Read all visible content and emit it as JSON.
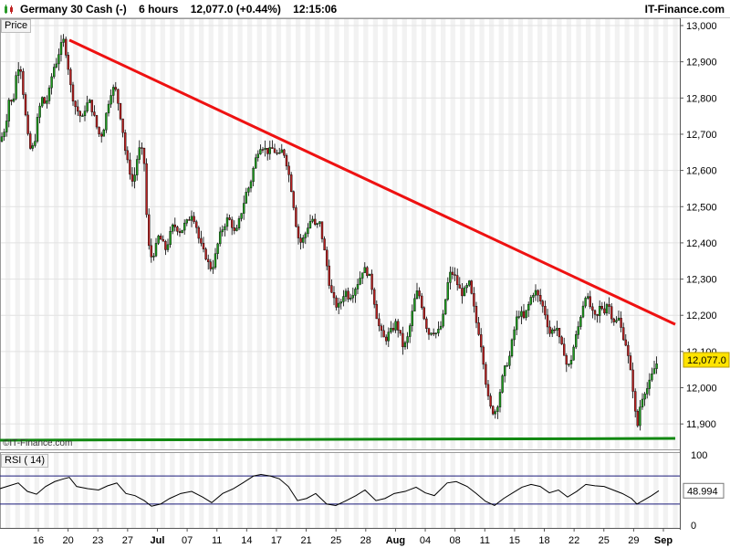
{
  "header": {
    "instrument": "Germany 30 Cash (-)",
    "timeframe": "6 hours",
    "last": "12,077.0 (+0.44%)",
    "time": "12:15:06",
    "brand": "IT-Finance.com"
  },
  "panels": {
    "price_label": "Price",
    "rsi_label": "RSI ( 14)",
    "watermark": "©IT-Finance.com"
  },
  "colors": {
    "up": "#1f9a1f",
    "down": "#b52020",
    "trend": "#ee1111",
    "support": "#118811",
    "band": "#f2f2f2"
  },
  "chart_data": [
    {
      "type": "candlestick",
      "title": "Germany 30 Cash (-) 6 hours",
      "ylim": [
        11850,
        13000
      ],
      "y_ticks": [
        11900,
        12000,
        12100,
        12200,
        12300,
        12400,
        12500,
        12600,
        12700,
        12800,
        12900,
        13000
      ],
      "y_tick_labels": [
        "11,900",
        "12,000",
        "12,100",
        "12,200",
        "12,300",
        "12,400",
        "12,500",
        "12,600",
        "12,700",
        "12,800",
        "12,900",
        "13,000"
      ],
      "x_tick_labels": [
        "16",
        "20",
        "23",
        "27",
        "Jul",
        "07",
        "11",
        "14",
        "17",
        "21",
        "25",
        "28",
        "Aug",
        "04",
        "08",
        "11",
        "15",
        "18",
        "22",
        "25",
        "29",
        "Sep"
      ],
      "last_price_label": "12,077.0",
      "last_price": 12077,
      "close_path": [
        [
          0,
          12680
        ],
        [
          6,
          12720
        ],
        [
          10,
          12800
        ],
        [
          14,
          12780
        ],
        [
          18,
          12870
        ],
        [
          22,
          12900
        ],
        [
          26,
          12800
        ],
        [
          30,
          12700
        ],
        [
          34,
          12650
        ],
        [
          38,
          12680
        ],
        [
          42,
          12760
        ],
        [
          46,
          12800
        ],
        [
          50,
          12780
        ],
        [
          54,
          12820
        ],
        [
          58,
          12880
        ],
        [
          62,
          12900
        ],
        [
          66,
          12940
        ],
        [
          70,
          12960
        ],
        [
          74,
          12900
        ],
        [
          78,
          12820
        ],
        [
          82,
          12780
        ],
        [
          86,
          12760
        ],
        [
          90,
          12740
        ],
        [
          94,
          12780
        ],
        [
          98,
          12790
        ],
        [
          102,
          12760
        ],
        [
          106,
          12720
        ],
        [
          110,
          12690
        ],
        [
          114,
          12720
        ],
        [
          118,
          12780
        ],
        [
          122,
          12820
        ],
        [
          126,
          12830
        ],
        [
          130,
          12780
        ],
        [
          134,
          12720
        ],
        [
          138,
          12640
        ],
        [
          142,
          12600
        ],
        [
          146,
          12560
        ],
        [
          150,
          12630
        ],
        [
          154,
          12670
        ],
        [
          158,
          12620
        ],
        [
          162,
          12400
        ],
        [
          166,
          12360
        ],
        [
          170,
          12380
        ],
        [
          174,
          12420
        ],
        [
          178,
          12400
        ],
        [
          182,
          12380
        ],
        [
          186,
          12420
        ],
        [
          190,
          12450
        ],
        [
          194,
          12440
        ],
        [
          198,
          12430
        ],
        [
          202,
          12450
        ],
        [
          206,
          12460
        ],
        [
          210,
          12480
        ],
        [
          214,
          12460
        ],
        [
          218,
          12410
        ],
        [
          222,
          12380
        ],
        [
          226,
          12360
        ],
        [
          230,
          12330
        ],
        [
          234,
          12340
        ],
        [
          238,
          12390
        ],
        [
          242,
          12430
        ],
        [
          246,
          12450
        ],
        [
          250,
          12470
        ],
        [
          254,
          12450
        ],
        [
          258,
          12420
        ],
        [
          262,
          12460
        ],
        [
          266,
          12500
        ],
        [
          270,
          12540
        ],
        [
          274,
          12560
        ],
        [
          278,
          12610
        ],
        [
          282,
          12650
        ],
        [
          286,
          12670
        ],
        [
          290,
          12660
        ],
        [
          294,
          12650
        ],
        [
          298,
          12660
        ],
        [
          302,
          12650
        ],
        [
          306,
          12640
        ],
        [
          310,
          12660
        ],
        [
          314,
          12620
        ],
        [
          318,
          12570
        ],
        [
          322,
          12500
        ],
        [
          326,
          12420
        ],
        [
          330,
          12400
        ],
        [
          334,
          12420
        ],
        [
          338,
          12450
        ],
        [
          342,
          12470
        ],
        [
          346,
          12440
        ],
        [
          350,
          12460
        ],
        [
          354,
          12400
        ],
        [
          358,
          12340
        ],
        [
          362,
          12270
        ],
        [
          366,
          12240
        ],
        [
          370,
          12220
        ],
        [
          374,
          12240
        ],
        [
          378,
          12270
        ],
        [
          382,
          12250
        ],
        [
          386,
          12260
        ],
        [
          390,
          12280
        ],
        [
          394,
          12300
        ],
        [
          398,
          12330
        ],
        [
          402,
          12320
        ],
        [
          406,
          12300
        ],
        [
          410,
          12240
        ],
        [
          414,
          12180
        ],
        [
          418,
          12150
        ],
        [
          422,
          12130
        ],
        [
          426,
          12150
        ],
        [
          430,
          12160
        ],
        [
          434,
          12180
        ],
        [
          438,
          12150
        ],
        [
          442,
          12110
        ],
        [
          446,
          12130
        ],
        [
          450,
          12180
        ],
        [
          454,
          12240
        ],
        [
          458,
          12270
        ],
        [
          462,
          12230
        ],
        [
          466,
          12180
        ],
        [
          470,
          12150
        ],
        [
          474,
          12160
        ],
        [
          478,
          12150
        ],
        [
          482,
          12160
        ],
        [
          486,
          12200
        ],
        [
          490,
          12280
        ],
        [
          494,
          12320
        ],
        [
          498,
          12310
        ],
        [
          502,
          12280
        ],
        [
          506,
          12260
        ],
        [
          510,
          12270
        ],
        [
          514,
          12290
        ],
        [
          518,
          12240
        ],
        [
          522,
          12180
        ],
        [
          526,
          12140
        ],
        [
          530,
          12070
        ],
        [
          534,
          11980
        ],
        [
          538,
          11940
        ],
        [
          542,
          11930
        ],
        [
          546,
          11960
        ],
        [
          550,
          12020
        ],
        [
          554,
          12060
        ],
        [
          558,
          12080
        ],
        [
          562,
          12140
        ],
        [
          566,
          12190
        ],
        [
          570,
          12210
        ],
        [
          574,
          12190
        ],
        [
          578,
          12220
        ],
        [
          582,
          12250
        ],
        [
          586,
          12270
        ],
        [
          590,
          12250
        ],
        [
          594,
          12230
        ],
        [
          598,
          12200
        ],
        [
          602,
          12150
        ],
        [
          606,
          12160
        ],
        [
          610,
          12170
        ],
        [
          614,
          12120
        ],
        [
          618,
          12100
        ],
        [
          622,
          12050
        ],
        [
          626,
          12080
        ],
        [
          630,
          12130
        ],
        [
          634,
          12170
        ],
        [
          638,
          12220
        ],
        [
          642,
          12260
        ],
        [
          646,
          12230
        ],
        [
          650,
          12200
        ],
        [
          654,
          12190
        ],
        [
          658,
          12230
        ],
        [
          662,
          12210
        ],
        [
          666,
          12240
        ],
        [
          670,
          12200
        ],
        [
          674,
          12180
        ],
        [
          678,
          12190
        ],
        [
          682,
          12150
        ],
        [
          686,
          12120
        ],
        [
          690,
          12060
        ],
        [
          694,
          11990
        ],
        [
          698,
          11880
        ],
        [
          702,
          11960
        ],
        [
          706,
          11990
        ],
        [
          710,
          12000
        ],
        [
          714,
          12030
        ],
        [
          718,
          12060
        ],
        [
          722,
          12077
        ]
      ],
      "trendline_resistance": {
        "x": [
          76,
          740
        ],
        "y": [
          12960,
          12175
        ]
      },
      "trendline_support": {
        "x": [
          0,
          740
        ],
        "y": [
          11855,
          11860
        ]
      }
    },
    {
      "type": "line",
      "title": "RSI ( 14)",
      "ylim": [
        0,
        100
      ],
      "y_ticks": [
        0,
        50,
        100
      ],
      "y_tick_labels": [
        "0",
        "50",
        "100"
      ],
      "levels": [
        70,
        30
      ],
      "last_value_label": "48.994",
      "last_value": 48.994,
      "values": [
        [
          0,
          52
        ],
        [
          10,
          56
        ],
        [
          20,
          60
        ],
        [
          30,
          48
        ],
        [
          40,
          44
        ],
        [
          50,
          55
        ],
        [
          60,
          62
        ],
        [
          70,
          66
        ],
        [
          76,
          68
        ],
        [
          84,
          55
        ],
        [
          96,
          52
        ],
        [
          108,
          50
        ],
        [
          118,
          56
        ],
        [
          128,
          60
        ],
        [
          138,
          45
        ],
        [
          148,
          42
        ],
        [
          158,
          35
        ],
        [
          166,
          27
        ],
        [
          176,
          30
        ],
        [
          186,
          38
        ],
        [
          198,
          45
        ],
        [
          210,
          48
        ],
        [
          222,
          40
        ],
        [
          232,
          32
        ],
        [
          244,
          45
        ],
        [
          256,
          52
        ],
        [
          266,
          60
        ],
        [
          278,
          70
        ],
        [
          286,
          72
        ],
        [
          296,
          70
        ],
        [
          306,
          66
        ],
        [
          316,
          55
        ],
        [
          326,
          35
        ],
        [
          336,
          38
        ],
        [
          346,
          45
        ],
        [
          358,
          30
        ],
        [
          368,
          28
        ],
        [
          378,
          34
        ],
        [
          390,
          42
        ],
        [
          400,
          50
        ],
        [
          412,
          35
        ],
        [
          422,
          38
        ],
        [
          432,
          45
        ],
        [
          444,
          48
        ],
        [
          456,
          54
        ],
        [
          466,
          46
        ],
        [
          476,
          42
        ],
        [
          490,
          60
        ],
        [
          500,
          62
        ],
        [
          512,
          55
        ],
        [
          522,
          45
        ],
        [
          532,
          34
        ],
        [
          542,
          28
        ],
        [
          552,
          38
        ],
        [
          562,
          46
        ],
        [
          572,
          54
        ],
        [
          582,
          58
        ],
        [
          592,
          55
        ],
        [
          602,
          46
        ],
        [
          612,
          50
        ],
        [
          622,
          40
        ],
        [
          632,
          48
        ],
        [
          642,
          58
        ],
        [
          652,
          56
        ],
        [
          662,
          55
        ],
        [
          672,
          50
        ],
        [
          682,
          45
        ],
        [
          692,
          38
        ],
        [
          698,
          30
        ],
        [
          706,
          36
        ],
        [
          714,
          42
        ],
        [
          722,
          48.994
        ]
      ]
    }
  ]
}
